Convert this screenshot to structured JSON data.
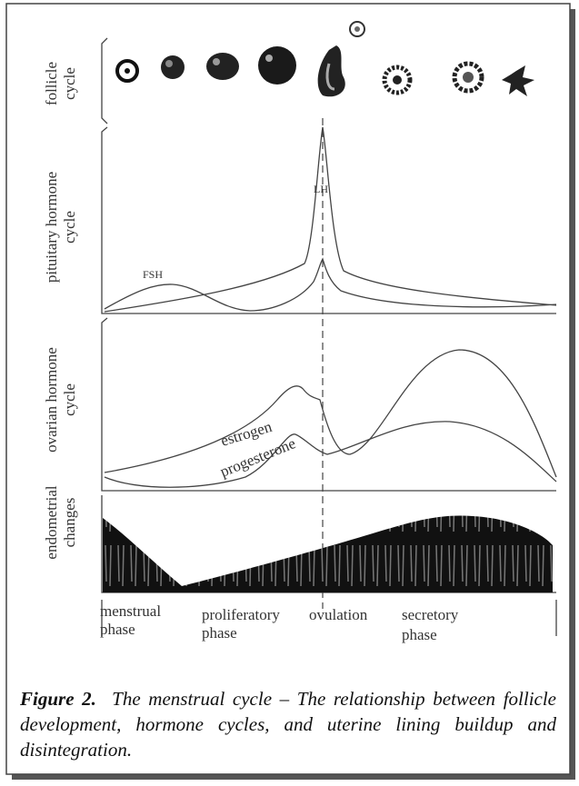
{
  "rows": [
    {
      "lines": [
        "follicle",
        "cycle"
      ]
    },
    {
      "lines": [
        "pituitary hormone",
        "cycle"
      ]
    },
    {
      "lines": [
        "ovarian hormone",
        "cycle"
      ]
    },
    {
      "lines": [
        "endometrial",
        "changes"
      ]
    }
  ],
  "curves": {
    "lh": "LH",
    "fsh": "FSH",
    "estrogen": "estrogen",
    "progesterone": "progesterone"
  },
  "phases": [
    {
      "lines": [
        "menstrual",
        "phase"
      ]
    },
    {
      "lines": [
        "proliferatory",
        "phase"
      ]
    },
    {
      "lines": [
        "ovulation"
      ]
    },
    {
      "lines": [
        "secretory",
        "phase"
      ]
    }
  ],
  "caption": {
    "label": "Figure 2.",
    "text": "The menstrual cycle – The relationship between follicle development, hormone cycles, and uterine lining buildup and disintegration."
  }
}
